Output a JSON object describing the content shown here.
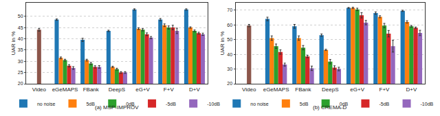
{
  "chart_data": [
    {
      "type": "bar",
      "title": "(a) MSP-IMPROV",
      "ylabel": "UAR in %",
      "categories": [
        "Video",
        "eGeMAPS",
        "FBank",
        "DeepS",
        "eG+V",
        "F+V",
        "D+V"
      ],
      "ylim": [
        20,
        56
      ],
      "yticks": [
        20,
        25,
        30,
        35,
        40,
        45,
        50
      ],
      "grid": true,
      "legend": "bottom",
      "series": [
        {
          "name": "Video",
          "color": "#8c564b",
          "values": [
            44,
            null,
            null,
            null,
            null,
            null,
            null
          ],
          "errors": [
            0.6,
            null,
            null,
            null,
            null,
            null,
            null
          ]
        },
        {
          "name": "no noise",
          "color": "#1f77b4",
          "values": [
            null,
            48.5,
            39.5,
            43.5,
            53,
            48.5,
            53
          ],
          "errors": [
            null,
            0.3,
            0.7,
            0.3,
            0.3,
            0.5,
            0.3
          ]
        },
        {
          "name": "5dB",
          "color": "#ff7f0e",
          "values": [
            null,
            31.5,
            30.5,
            27.5,
            44.5,
            46,
            45
          ],
          "errors": [
            null,
            0.4,
            0.4,
            0.3,
            0.4,
            0.6,
            0.3
          ]
        },
        {
          "name": "0dB",
          "color": "#2ca02c",
          "values": [
            null,
            30.5,
            29,
            26.5,
            44,
            45,
            43.5
          ],
          "errors": [
            null,
            0.4,
            0.5,
            0.4,
            0.5,
            0.7,
            0.4
          ]
        },
        {
          "name": "-5dB",
          "color": "#d62728",
          "values": [
            null,
            28,
            27.5,
            25,
            42,
            45,
            42.5
          ],
          "errors": [
            null,
            0.5,
            0.5,
            0.4,
            0.6,
            1,
            0.4
          ]
        },
        {
          "name": "-10dB",
          "color": "#9467bd",
          "values": [
            null,
            27,
            27.5,
            25,
            40.5,
            43.5,
            42
          ],
          "errors": [
            null,
            0.6,
            0.6,
            0.4,
            0.5,
            1.2,
            0.5
          ]
        }
      ]
    },
    {
      "type": "bar",
      "title": "(b) CREMA-D",
      "ylabel": "UAR in %",
      "categories": [
        "Video",
        "eGeMAPS",
        "FBank",
        "DeepS",
        "eG+V",
        "F+V",
        "D+V"
      ],
      "ylim": [
        20,
        75
      ],
      "yticks": [
        20,
        30,
        40,
        50,
        60,
        70
      ],
      "grid": true,
      "legend": "bottom",
      "series": [
        {
          "name": "Video",
          "color": "#8c564b",
          "values": [
            59.5,
            null,
            null,
            null,
            null,
            null,
            null
          ],
          "errors": [
            0.8,
            null,
            null,
            null,
            null,
            null,
            null
          ]
        },
        {
          "name": "no noise",
          "color": "#1f77b4",
          "values": [
            null,
            64,
            59,
            53,
            71.5,
            68,
            69.5
          ],
          "errors": [
            null,
            1.2,
            1.3,
            0.8,
            0.3,
            0.8,
            0.4
          ]
        },
        {
          "name": "5dB",
          "color": "#ff7f0e",
          "values": [
            null,
            51,
            51,
            43,
            71.5,
            65.5,
            62
          ],
          "errors": [
            null,
            1.5,
            1.5,
            0.4,
            0.5,
            0.7,
            0.8
          ]
        },
        {
          "name": "0dB",
          "color": "#2ca02c",
          "values": [
            null,
            45.5,
            44.5,
            35,
            70.5,
            59.5,
            59
          ],
          "errors": [
            null,
            1.5,
            1.5,
            1.5,
            0.8,
            1.5,
            0.6
          ]
        },
        {
          "name": "-5dB",
          "color": "#d62728",
          "values": [
            null,
            41.5,
            38.5,
            31,
            66.5,
            54,
            58
          ],
          "errors": [
            null,
            1.5,
            0.8,
            1.2,
            1.8,
            2.2,
            0.5
          ]
        },
        {
          "name": "-10dB",
          "color": "#9467bd",
          "values": [
            null,
            33,
            30.5,
            30,
            61.5,
            45.5,
            54.5
          ],
          "errors": [
            null,
            1,
            1.5,
            1.2,
            1.5,
            4,
            1.8
          ]
        }
      ]
    }
  ]
}
